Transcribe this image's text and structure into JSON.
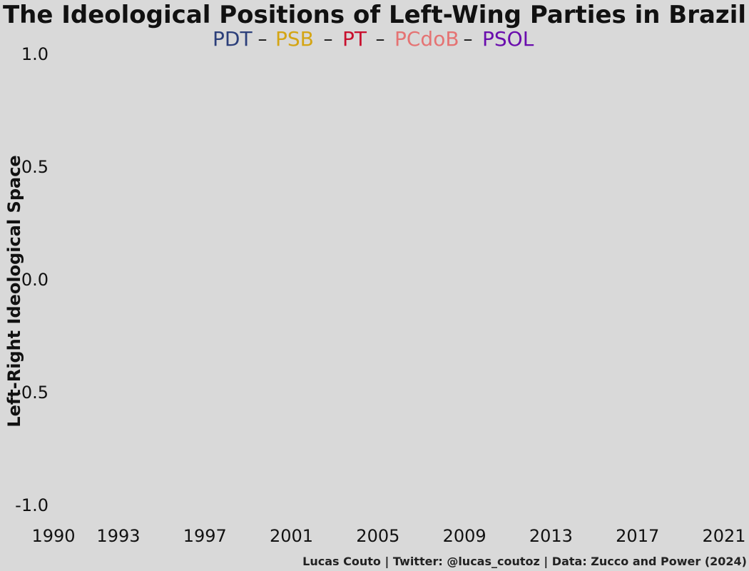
{
  "chart_data": {
    "type": "line",
    "title": "The Ideological Positions of Left-Wing Parties in Brazil",
    "ylabel": "Left-Right Ideological Space",
    "caption": "Lucas Couto | Twitter: @lucas_coutoz | Data: Zucco and Power (2024)",
    "xlim": [
      1990,
      2021
    ],
    "ylim": [
      -1.0,
      1.0
    ],
    "x_ticks": [
      "1990",
      "1993",
      "1997",
      "2001",
      "2005",
      "2009",
      "2013",
      "2017",
      "2021"
    ],
    "x_tick_values": [
      1990,
      1993,
      1997,
      2001,
      2005,
      2009,
      2013,
      2017,
      2021
    ],
    "y_ticks": [
      "1.0",
      "0.5",
      "0.0",
      "-0.5",
      "-1.0"
    ],
    "y_tick_values": [
      1.0,
      0.5,
      0.0,
      -0.5,
      -1.0
    ],
    "grid": false,
    "legend_placement": "top",
    "legend_separator": "–",
    "series": [
      {
        "name": "PDT",
        "color": "#2c3f7a",
        "values": []
      },
      {
        "name": "PSB",
        "color": "#d4a514",
        "values": []
      },
      {
        "name": "PT",
        "color": "#c8102e",
        "values": []
      },
      {
        "name": "PCdoB",
        "color": "#e57373",
        "values": []
      },
      {
        "name": "PSOL",
        "color": "#6a0dad",
        "values": []
      }
    ]
  }
}
